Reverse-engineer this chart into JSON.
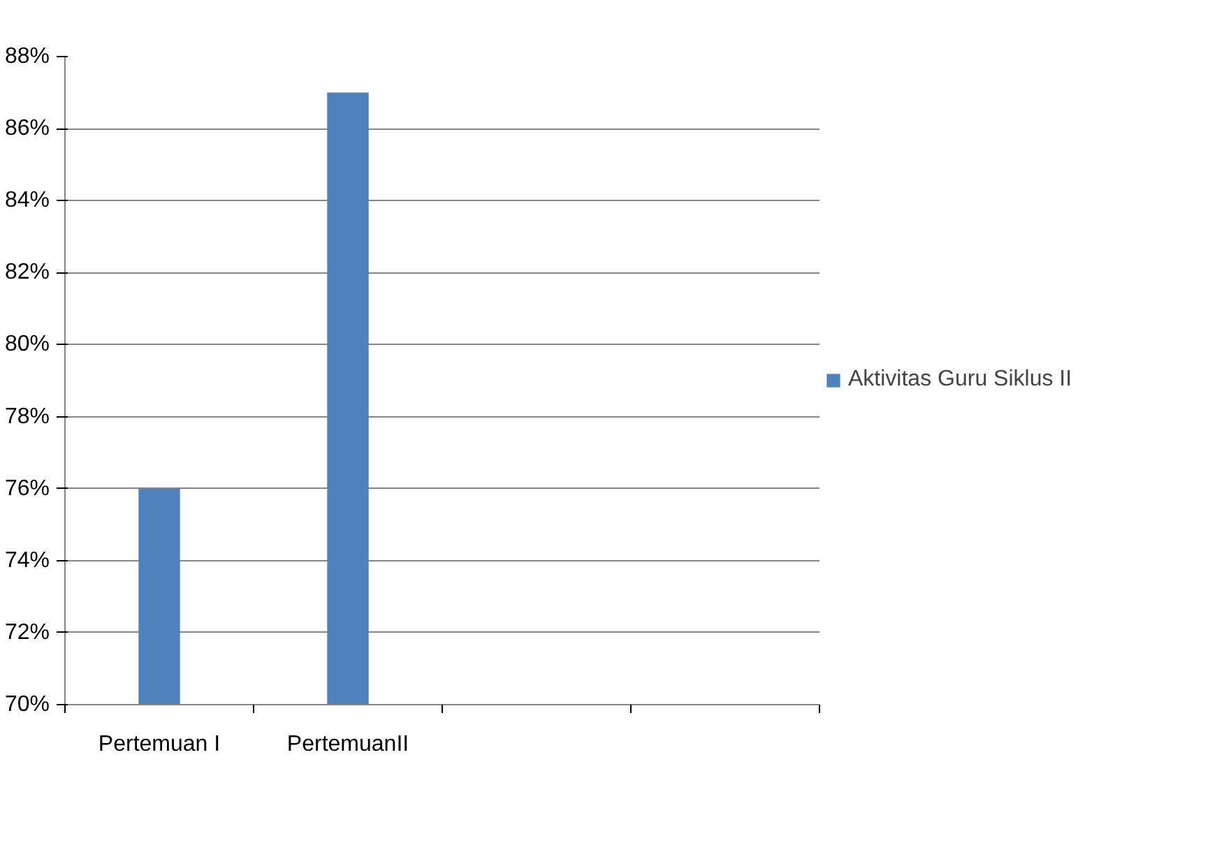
{
  "chart_data": {
    "type": "bar",
    "categories": [
      "Pertemuan I",
      "PertemuanII",
      null,
      null
    ],
    "series": [
      {
        "name": "Aktivitas Guru Siklus II",
        "color": "#4f81bd",
        "values": [
          76,
          87,
          null,
          null
        ]
      }
    ],
    "ylim": [
      70,
      88
    ],
    "yticks": [
      {
        "value": 70,
        "label": "70%"
      },
      {
        "value": 72,
        "label": "72%"
      },
      {
        "value": 74,
        "label": "74%"
      },
      {
        "value": 76,
        "label": "76%"
      },
      {
        "value": 78,
        "label": "78%"
      },
      {
        "value": 80,
        "label": "80%"
      },
      {
        "value": 82,
        "label": "82%"
      },
      {
        "value": 84,
        "label": "84%"
      },
      {
        "value": 86,
        "label": "86%"
      },
      {
        "value": 88,
        "label": "88%"
      }
    ],
    "grid": "y",
    "legend": "right"
  }
}
